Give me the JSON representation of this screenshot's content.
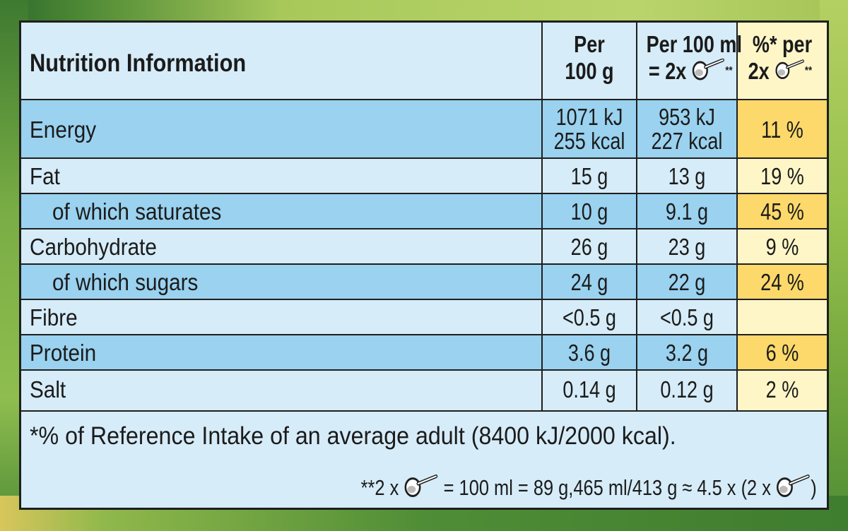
{
  "table": {
    "title": "Nutrition Information",
    "headers": {
      "per100g": [
        "Per",
        "100 g"
      ],
      "per100ml": [
        "Per 100 ml",
        "= 2x"
      ],
      "ri": [
        "%* per",
        "2x"
      ],
      "stars": "**"
    },
    "rows": [
      {
        "label": "Energy",
        "per100g": [
          "1071 kJ",
          "255 kcal"
        ],
        "per100ml": [
          "953 kJ",
          "227 kcal"
        ],
        "ri": "11 %"
      },
      {
        "label": "Fat",
        "per100g": "15 g",
        "per100ml": "13 g",
        "ri": "19 %"
      },
      {
        "label": "of which saturates",
        "per100g": "10 g",
        "per100ml": "9.1 g",
        "ri": "45 %"
      },
      {
        "label": "Carbohydrate",
        "per100g": "26 g",
        "per100ml": "23 g",
        "ri": "9 %"
      },
      {
        "label": "of which sugars",
        "per100g": "24 g",
        "per100ml": "22 g",
        "ri": "24 %"
      },
      {
        "label": "Fibre",
        "per100g": "<0.5 g",
        "per100ml": "<0.5 g",
        "ri": ""
      },
      {
        "label": "Protein",
        "per100g": "3.6 g",
        "per100ml": "3.2 g",
        "ri": "6 %"
      },
      {
        "label": "Salt",
        "per100g": "0.14 g",
        "per100ml": "0.12 g",
        "ri": "2 %"
      }
    ],
    "footnote1": "*% of Reference Intake of an average adult (8400 kJ/2000 kcal).",
    "footnote2": {
      "part1": "**2 x",
      "part2": "= 100 ml = 89 g,465 ml/413 g ≈ 4.5 x (2 x",
      "part3": ")"
    }
  },
  "colors": {
    "row_light": "#d6ecf8",
    "row_dark": "#9ad2ef",
    "pct_light": "#fff6c8",
    "pct_dark": "#fcd96a",
    "border": "#1f1f1f"
  },
  "icons": [
    "scoop-icon"
  ]
}
